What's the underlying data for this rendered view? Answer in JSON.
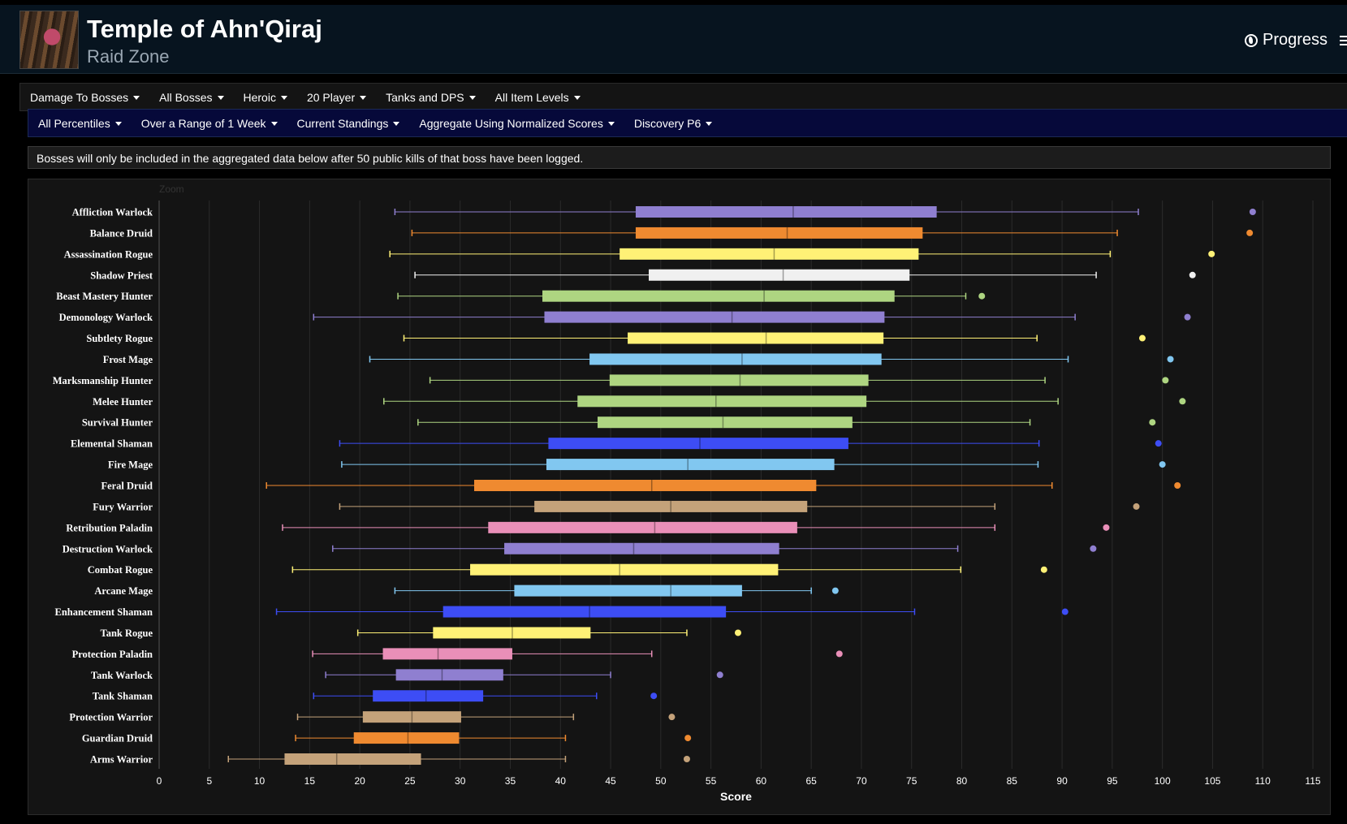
{
  "header": {
    "title": "Temple of Ahn'Qiraj",
    "subtitle": "Raid Zone",
    "progress_label": "Progress"
  },
  "filters_row1": [
    "Damage To Bosses",
    "All Bosses",
    "Heroic",
    "20 Player",
    "Tanks and DPS",
    "All Item Levels"
  ],
  "filters_row2": [
    "All Percentiles",
    "Over a Range of 1 Week",
    "Current Standings",
    "Aggregate Using Normalized Scores",
    "Discovery P6"
  ],
  "notice": "Bosses will only be included in the aggregated data below after 50 public kills of that boss have been logged.",
  "chart": {
    "zoom_label": "Zoom"
  },
  "chart_data": {
    "type": "boxplot",
    "xlabel": "Score",
    "xlim": [
      0,
      115
    ],
    "xticks": [
      0,
      5,
      10,
      15,
      20,
      25,
      30,
      35,
      40,
      45,
      50,
      55,
      60,
      65,
      70,
      75,
      80,
      85,
      90,
      95,
      100,
      105,
      110,
      115
    ],
    "grid": true,
    "orientation": "horizontal",
    "categories": [
      {
        "label": "Affliction Warlock",
        "min": 23.5,
        "q1": 47.5,
        "median": 63.2,
        "q3": 77.5,
        "max": 97.6,
        "outlier": 109.0,
        "color": "#8f7fd0"
      },
      {
        "label": "Balance Druid",
        "min": 25.2,
        "q1": 47.5,
        "median": 62.6,
        "q3": 76.1,
        "max": 95.5,
        "outlier": 108.7,
        "color": "#ef8a30"
      },
      {
        "label": "Assassination Rogue",
        "min": 23.0,
        "q1": 45.9,
        "median": 61.3,
        "q3": 75.7,
        "max": 94.8,
        "outlier": 104.9,
        "color": "#fff176"
      },
      {
        "label": "Shadow Priest",
        "min": 25.5,
        "q1": 48.8,
        "median": 62.2,
        "q3": 74.8,
        "max": 93.4,
        "outlier": 103.0,
        "color": "#f0f0f0"
      },
      {
        "label": "Beast Mastery Hunter",
        "min": 23.8,
        "q1": 38.2,
        "median": 60.3,
        "q3": 73.3,
        "max": 80.4,
        "outlier": 82.0,
        "color": "#aed581"
      },
      {
        "label": "Demonology Warlock",
        "min": 15.4,
        "q1": 38.4,
        "median": 57.1,
        "q3": 72.3,
        "max": 91.3,
        "outlier": 102.5,
        "color": "#8f7fd0"
      },
      {
        "label": "Subtlety Rogue",
        "min": 24.4,
        "q1": 46.7,
        "median": 60.5,
        "q3": 72.2,
        "max": 87.5,
        "outlier": 98.0,
        "color": "#fff176"
      },
      {
        "label": "Frost Mage",
        "min": 21.0,
        "q1": 42.9,
        "median": 58.1,
        "q3": 72.0,
        "max": 90.6,
        "outlier": 100.8,
        "color": "#81c7f0"
      },
      {
        "label": "Marksmanship Hunter",
        "min": 27.0,
        "q1": 44.9,
        "median": 57.9,
        "q3": 70.7,
        "max": 88.3,
        "outlier": 100.3,
        "color": "#aed581"
      },
      {
        "label": "Melee Hunter",
        "min": 22.4,
        "q1": 41.7,
        "median": 55.5,
        "q3": 70.5,
        "max": 89.6,
        "outlier": 102.0,
        "color": "#aed581"
      },
      {
        "label": "Survival Hunter",
        "min": 25.8,
        "q1": 43.7,
        "median": 56.2,
        "q3": 69.1,
        "max": 86.8,
        "outlier": 99.0,
        "color": "#aed581"
      },
      {
        "label": "Elemental Shaman",
        "min": 18.0,
        "q1": 38.8,
        "median": 53.9,
        "q3": 68.7,
        "max": 87.7,
        "outlier": 99.6,
        "color": "#3d4df5"
      },
      {
        "label": "Fire Mage",
        "min": 18.2,
        "q1": 38.6,
        "median": 52.7,
        "q3": 67.3,
        "max": 87.6,
        "outlier": 100.0,
        "color": "#81c7f0"
      },
      {
        "label": "Feral Druid",
        "min": 10.7,
        "q1": 31.4,
        "median": 49.1,
        "q3": 65.5,
        "max": 89.0,
        "outlier": 101.5,
        "color": "#ef8a30"
      },
      {
        "label": "Fury Warrior",
        "min": 18.0,
        "q1": 37.4,
        "median": 51.0,
        "q3": 64.6,
        "max": 83.3,
        "outlier": 97.4,
        "color": "#c4a27a"
      },
      {
        "label": "Retribution Paladin",
        "min": 12.3,
        "q1": 32.8,
        "median": 49.4,
        "q3": 63.6,
        "max": 83.3,
        "outlier": 94.4,
        "color": "#e98fb8"
      },
      {
        "label": "Destruction Warlock",
        "min": 17.3,
        "q1": 34.4,
        "median": 47.3,
        "q3": 61.8,
        "max": 79.6,
        "outlier": 93.1,
        "color": "#8f7fd0"
      },
      {
        "label": "Combat Rogue",
        "min": 13.3,
        "q1": 31.0,
        "median": 45.9,
        "q3": 61.7,
        "max": 79.9,
        "outlier": 88.2,
        "color": "#fff176"
      },
      {
        "label": "Arcane Mage",
        "min": 23.5,
        "q1": 35.4,
        "median": 51.0,
        "q3": 58.1,
        "max": 65.0,
        "outlier": 67.4,
        "color": "#81c7f0"
      },
      {
        "label": "Enhancement Shaman",
        "min": 11.7,
        "q1": 28.3,
        "median": 42.9,
        "q3": 56.5,
        "max": 75.3,
        "outlier": 90.3,
        "color": "#3d4df5"
      },
      {
        "label": "Tank Rogue",
        "min": 19.8,
        "q1": 27.3,
        "median": 35.2,
        "q3": 43.0,
        "max": 52.6,
        "outlier": 57.7,
        "color": "#fff176"
      },
      {
        "label": "Protection Paladin",
        "min": 15.3,
        "q1": 22.3,
        "median": 27.8,
        "q3": 35.2,
        "max": 49.1,
        "outlier": 67.8,
        "color": "#e98fb8"
      },
      {
        "label": "Tank Warlock",
        "min": 16.6,
        "q1": 23.6,
        "median": 28.2,
        "q3": 34.3,
        "max": 45.0,
        "outlier": 55.9,
        "color": "#8f7fd0"
      },
      {
        "label": "Tank Shaman",
        "min": 15.4,
        "q1": 21.3,
        "median": 26.6,
        "q3": 32.3,
        "max": 43.6,
        "outlier": 49.3,
        "color": "#3d4df5"
      },
      {
        "label": "Protection Warrior",
        "min": 13.8,
        "q1": 20.3,
        "median": 25.2,
        "q3": 30.1,
        "max": 41.3,
        "outlier": 51.1,
        "color": "#c4a27a"
      },
      {
        "label": "Guardian Druid",
        "min": 13.6,
        "q1": 19.4,
        "median": 24.8,
        "q3": 29.9,
        "max": 40.5,
        "outlier": 52.7,
        "color": "#ef8a30"
      },
      {
        "label": "Arms Warrior",
        "min": 6.9,
        "q1": 12.5,
        "median": 17.7,
        "q3": 26.1,
        "max": 40.5,
        "outlier": 52.6,
        "color": "#c4a27a"
      }
    ]
  }
}
